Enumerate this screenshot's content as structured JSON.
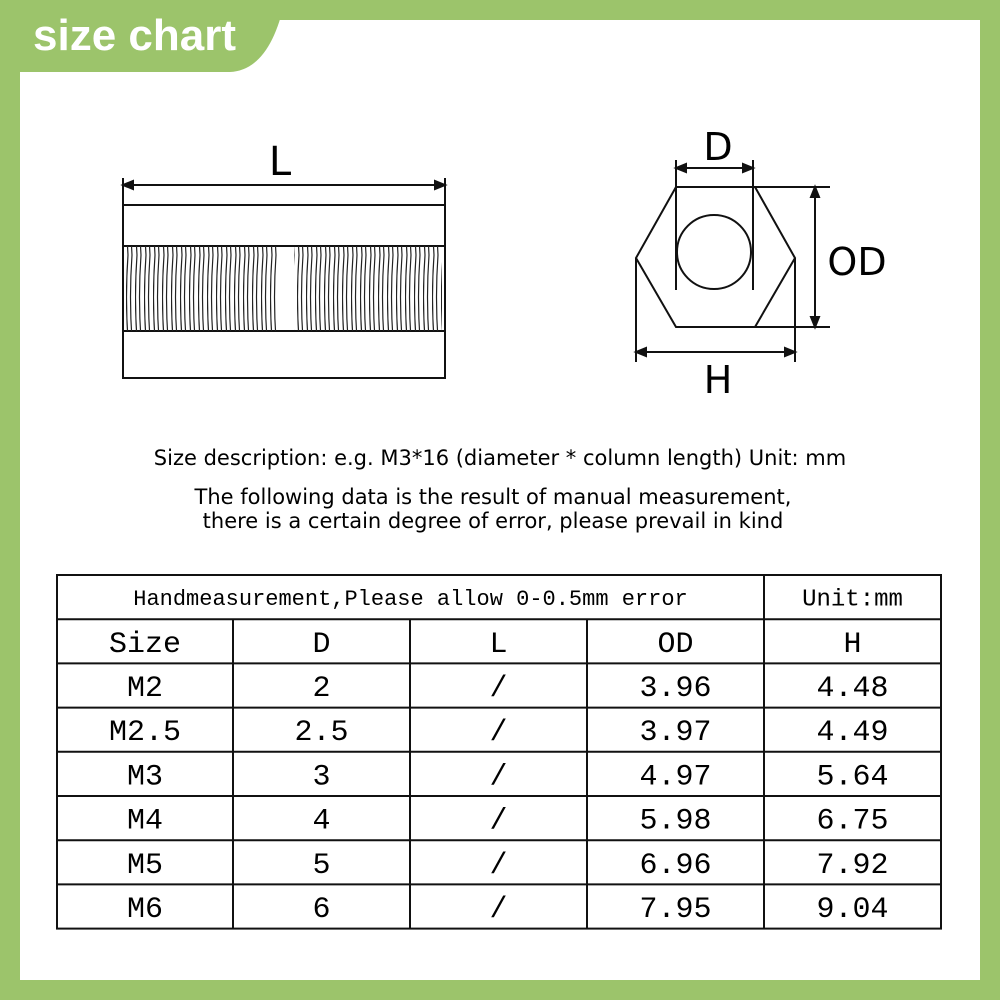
{
  "header": {
    "title": "size chart"
  },
  "diagram": {
    "length_label": "L",
    "diameter_label": "D",
    "outer_diameter_label": "OD",
    "hex_label": "H"
  },
  "description": {
    "size_note": "Size description: e.g. M3*16 (diameter * column length) Unit: mm",
    "measurement_note": [
      "The following data is the result of manual measurement,",
      "there is a certain degree of error, please prevail in kind"
    ]
  },
  "table": {
    "note": "Handmeasurement,Please allow 0-0.5mm error",
    "unit": "Unit:mm",
    "columns": [
      "Size",
      "D",
      "L",
      "OD",
      "H"
    ],
    "rows": [
      [
        "M2",
        "2",
        "/",
        "3.96",
        "4.48"
      ],
      [
        "M2.5",
        "2.5",
        "/",
        "3.97",
        "4.49"
      ],
      [
        "M3",
        "3",
        "/",
        "4.97",
        "5.64"
      ],
      [
        "M4",
        "4",
        "/",
        "5.98",
        "6.75"
      ],
      [
        "M5",
        "5",
        "/",
        "6.96",
        "7.92"
      ],
      [
        "M6",
        "6",
        "/",
        "7.95",
        "9.04"
      ]
    ]
  }
}
